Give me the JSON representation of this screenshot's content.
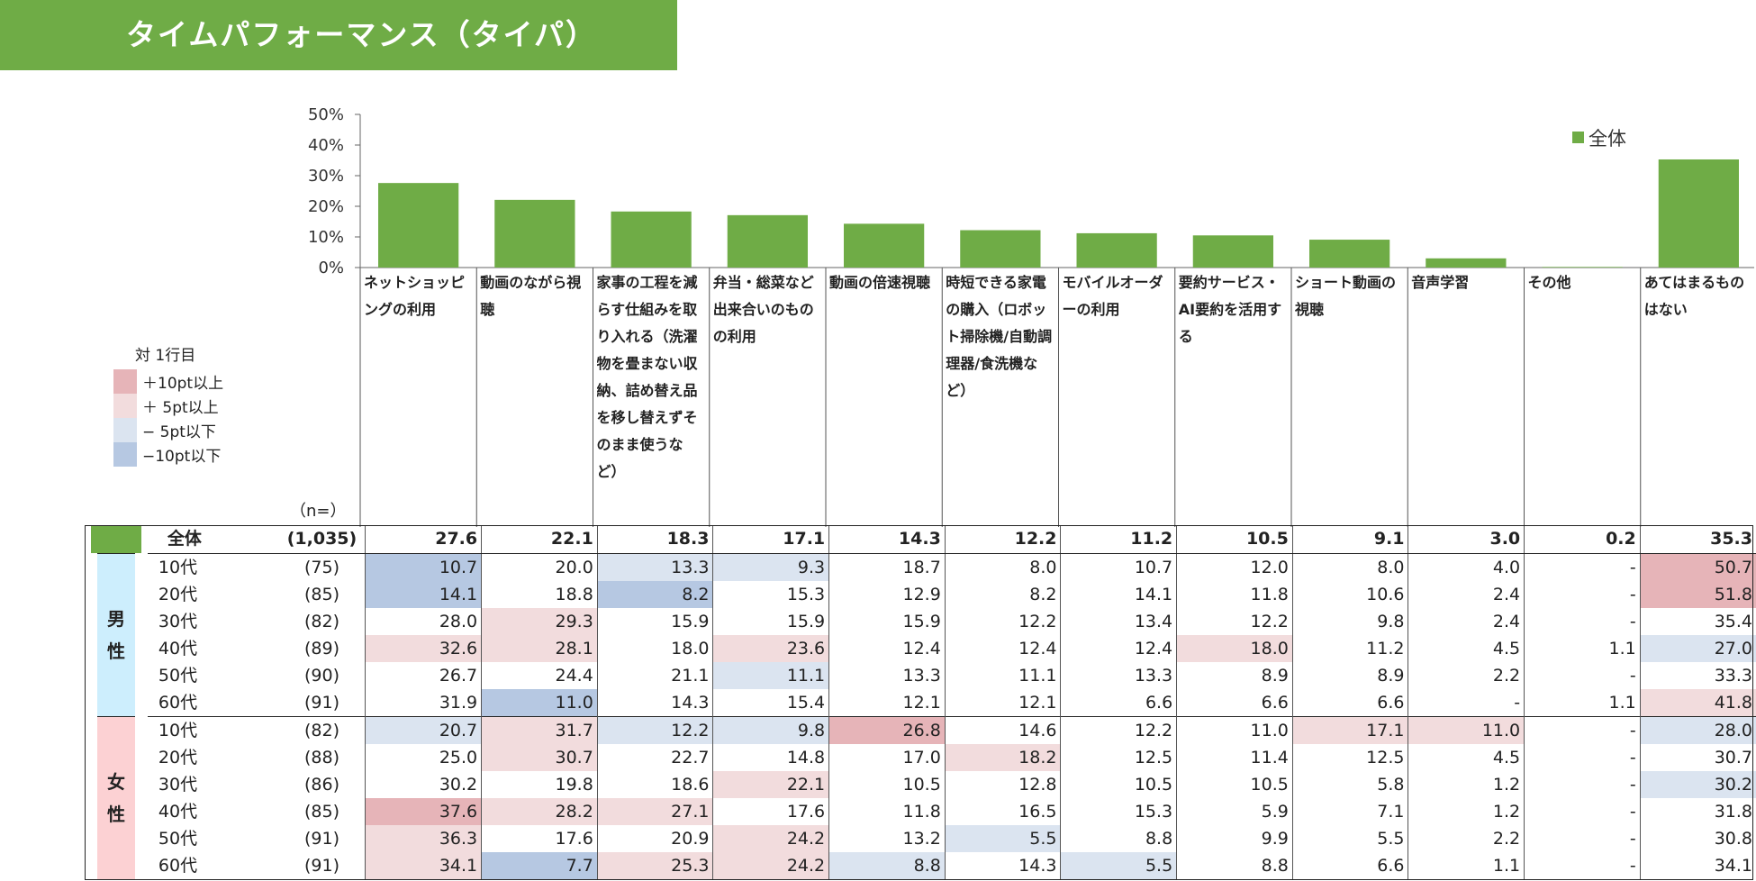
{
  "title": "タイムパフォーマンス（タイパ）",
  "colors": {
    "bar": "#6fac46",
    "plus10": "#e6b4b8",
    "plus5": "#f2dcdd",
    "minus5": "#dbe4f0",
    "minus10": "#b6c8e2",
    "male_band": "#cdeefd",
    "female_band": "#fcd1d3",
    "total_swatch": "#6fac46"
  },
  "legend": {
    "header": "対 1行目",
    "items": [
      {
        "label": "＋10pt以上",
        "color_key": "plus10"
      },
      {
        "label": "＋  5pt以上",
        "color_key": "plus5"
      },
      {
        "label": "−  5pt以下",
        "color_key": "minus5"
      },
      {
        "label": "−10pt以下",
        "color_key": "minus10"
      }
    ]
  },
  "n_label": "（n=）",
  "chart_data": {
    "type": "bar",
    "categories": [
      "ネットショッピングの利用",
      "動画のながら視聴",
      "家事の工程を減らす仕組みを取り入れる（洗濯物を畳まない収納、詰め替え品を移し替えずそのまま使うなど）",
      "弁当・総菜など出来合いのものの利用",
      "動画の倍速視聴",
      "時短できる家電の購入（ロボット掃除機/自動調理器/食洗機など）",
      "モバイルオーダーの利用",
      "要約サービス・AI要約を活用する",
      "ショート動画の視聴",
      "音声学習",
      "その他",
      "あてはまるものはない"
    ],
    "series": [
      {
        "name": "全体",
        "values": [
          27.6,
          22.1,
          18.3,
          17.1,
          14.3,
          12.2,
          11.2,
          10.5,
          9.1,
          3.0,
          0.2,
          35.3
        ]
      }
    ],
    "y_ticks": [
      "0%",
      "10%",
      "20%",
      "30%",
      "40%",
      "50%"
    ],
    "ylim": [
      0,
      50
    ],
    "legend_position": "top-right",
    "grid": false
  },
  "table": {
    "total": {
      "label": "全体",
      "n": "(1,035)",
      "values": [
        "27.6",
        "22.1",
        "18.3",
        "17.1",
        "14.3",
        "12.2",
        "11.2",
        "10.5",
        "9.1",
        "3.0",
        "0.2",
        "35.3"
      ]
    },
    "groups": [
      {
        "name": "男性",
        "color_key": "male_band",
        "rows": [
          {
            "age": "10代",
            "n": "(75)",
            "values": [
              "10.7",
              "20.0",
              "13.3",
              "9.3",
              "18.7",
              "8.0",
              "10.7",
              "12.0",
              "8.0",
              "4.0",
              "-",
              "50.7"
            ],
            "shade": [
              "minus10",
              "",
              "minus5",
              "minus5",
              "",
              "",
              "",
              "",
              "",
              "",
              "",
              "plus10"
            ]
          },
          {
            "age": "20代",
            "n": "(85)",
            "values": [
              "14.1",
              "18.8",
              "8.2",
              "15.3",
              "12.9",
              "8.2",
              "14.1",
              "11.8",
              "10.6",
              "2.4",
              "-",
              "51.8"
            ],
            "shade": [
              "minus10",
              "",
              "minus10",
              "",
              "",
              "",
              "",
              "",
              "",
              "",
              "",
              "plus10"
            ]
          },
          {
            "age": "30代",
            "n": "(82)",
            "values": [
              "28.0",
              "29.3",
              "15.9",
              "15.9",
              "15.9",
              "12.2",
              "13.4",
              "12.2",
              "9.8",
              "2.4",
              "-",
              "35.4"
            ],
            "shade": [
              "",
              "plus5",
              "",
              "",
              "",
              "",
              "",
              "",
              "",
              "",
              "",
              ""
            ]
          },
          {
            "age": "40代",
            "n": "(89)",
            "values": [
              "32.6",
              "28.1",
              "18.0",
              "23.6",
              "12.4",
              "12.4",
              "12.4",
              "18.0",
              "11.2",
              "4.5",
              "1.1",
              "27.0"
            ],
            "shade": [
              "plus5",
              "plus5",
              "",
              "plus5",
              "",
              "",
              "",
              "plus5",
              "",
              "",
              "",
              "minus5"
            ]
          },
          {
            "age": "50代",
            "n": "(90)",
            "values": [
              "26.7",
              "24.4",
              "21.1",
              "11.1",
              "13.3",
              "11.1",
              "13.3",
              "8.9",
              "8.9",
              "2.2",
              "-",
              "33.3"
            ],
            "shade": [
              "",
              "",
              "",
              "minus5",
              "",
              "",
              "",
              "",
              "",
              "",
              "",
              ""
            ]
          },
          {
            "age": "60代",
            "n": "(91)",
            "values": [
              "31.9",
              "11.0",
              "14.3",
              "15.4",
              "12.1",
              "12.1",
              "6.6",
              "6.6",
              "6.6",
              "-",
              "1.1",
              "41.8"
            ],
            "shade": [
              "",
              "minus10",
              "",
              "",
              "",
              "",
              "",
              "",
              "",
              "",
              "",
              "plus5"
            ]
          }
        ]
      },
      {
        "name": "女性",
        "color_key": "female_band",
        "rows": [
          {
            "age": "10代",
            "n": "(82)",
            "values": [
              "20.7",
              "31.7",
              "12.2",
              "9.8",
              "26.8",
              "14.6",
              "12.2",
              "11.0",
              "17.1",
              "11.0",
              "-",
              "28.0"
            ],
            "shade": [
              "minus5",
              "plus5",
              "minus5",
              "minus5",
              "plus10",
              "",
              "",
              "",
              "plus5",
              "plus5",
              "",
              "minus5"
            ]
          },
          {
            "age": "20代",
            "n": "(88)",
            "values": [
              "25.0",
              "30.7",
              "22.7",
              "14.8",
              "17.0",
              "18.2",
              "12.5",
              "11.4",
              "12.5",
              "4.5",
              "-",
              "30.7"
            ],
            "shade": [
              "",
              "plus5",
              "",
              "",
              "",
              "plus5",
              "",
              "",
              "",
              "",
              "",
              ""
            ]
          },
          {
            "age": "30代",
            "n": "(86)",
            "values": [
              "30.2",
              "19.8",
              "18.6",
              "22.1",
              "10.5",
              "12.8",
              "10.5",
              "10.5",
              "5.8",
              "1.2",
              "-",
              "30.2"
            ],
            "shade": [
              "",
              "",
              "",
              "plus5",
              "",
              "",
              "",
              "",
              "",
              "",
              "",
              "minus5"
            ]
          },
          {
            "age": "40代",
            "n": "(85)",
            "values": [
              "37.6",
              "28.2",
              "27.1",
              "17.6",
              "11.8",
              "16.5",
              "15.3",
              "5.9",
              "7.1",
              "1.2",
              "-",
              "31.8"
            ],
            "shade": [
              "plus10",
              "plus5",
              "plus5",
              "",
              "",
              "",
              "",
              "",
              "",
              "",
              "",
              ""
            ]
          },
          {
            "age": "50代",
            "n": "(91)",
            "values": [
              "36.3",
              "17.6",
              "20.9",
              "24.2",
              "13.2",
              "5.5",
              "8.8",
              "9.9",
              "5.5",
              "2.2",
              "-",
              "30.8"
            ],
            "shade": [
              "plus5",
              "",
              "",
              "plus5",
              "",
              "minus5",
              "",
              "",
              "",
              "",
              "",
              ""
            ]
          },
          {
            "age": "60代",
            "n": "(91)",
            "values": [
              "34.1",
              "7.7",
              "25.3",
              "24.2",
              "8.8",
              "14.3",
              "5.5",
              "8.8",
              "6.6",
              "1.1",
              "-",
              "34.1"
            ],
            "shade": [
              "plus5",
              "minus10",
              "plus5",
              "plus5",
              "minus5",
              "",
              "minus5",
              "",
              "",
              "",
              "",
              ""
            ]
          }
        ]
      }
    ]
  }
}
